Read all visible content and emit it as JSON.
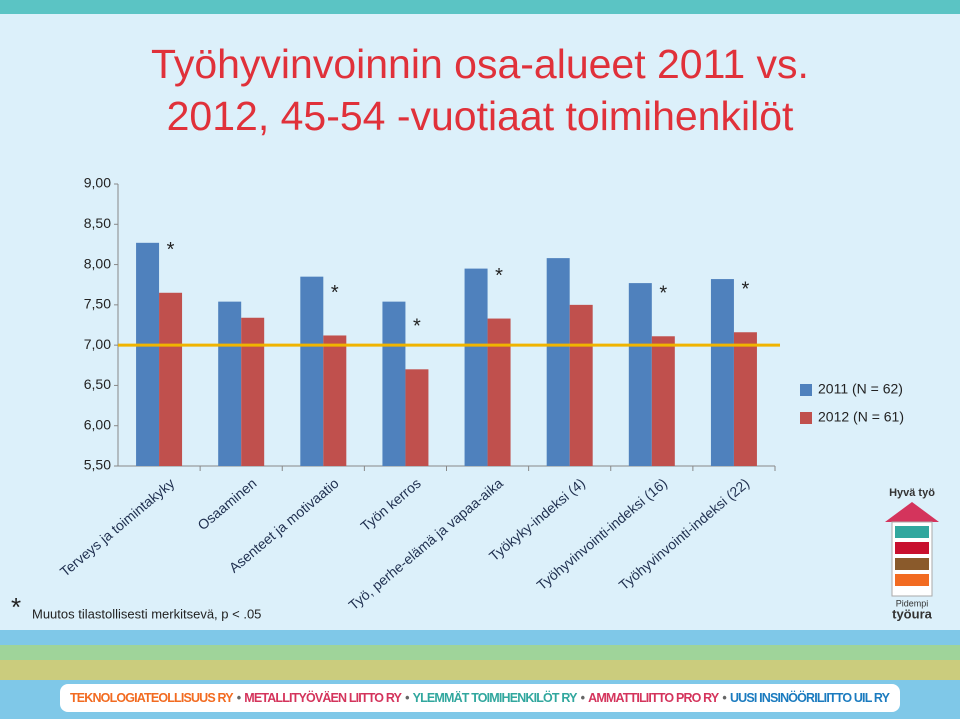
{
  "chart_data": {
    "type": "bar",
    "title": "Työhyvinvoinnin osa-alueet 2011 vs. 2012, 45-54 -vuotiaat toimihenkilöt",
    "categories": [
      "Terveys ja toimintakyky",
      "Osaaminen",
      "Asenteet ja motivaatio",
      "Työn kerros",
      "Työ, perhe-elämä ja vapaa-aika",
      "Työkyky-indeksi (4)",
      "Työhyvinvointi-indeksi (16)",
      "Työhyvinvointi-indeksi (22)"
    ],
    "series": [
      {
        "name": "2011 (N = 62)",
        "color": "#4f81bd",
        "values": [
          8.27,
          7.54,
          7.85,
          7.54,
          7.95,
          8.08,
          7.77,
          7.82
        ]
      },
      {
        "name": "2012 (N = 61)",
        "color": "#c0504d",
        "values": [
          7.65,
          7.34,
          7.12,
          6.7,
          7.33,
          7.5,
          7.11,
          7.16
        ]
      }
    ],
    "ylim": [
      5.5,
      9.0
    ],
    "yticks": [
      {
        "value": 5.5,
        "label": "5,50"
      },
      {
        "value": 6.0,
        "label": "6,00"
      },
      {
        "value": 6.5,
        "label": "6,50"
      },
      {
        "value": 7.0,
        "label": "7,00"
      },
      {
        "value": 7.5,
        "label": "7,50"
      },
      {
        "value": 8.0,
        "label": "8,00"
      },
      {
        "value": 8.5,
        "label": "8,50"
      },
      {
        "value": 9.0,
        "label": "9,00"
      }
    ],
    "reference_line": {
      "value": 7.0,
      "color": "#f0b400"
    },
    "significance_marker": "*",
    "significant": [
      true,
      false,
      true,
      true,
      true,
      false,
      true,
      true
    ],
    "footnote": "Muutos tilastollisesti merkitsevä, p < .05",
    "legend": "right",
    "grid": false
  },
  "logo": {
    "top": "Hyvä työ",
    "bottom_small": "Pidempi",
    "bottom_large": "työura"
  },
  "footer": [
    "TEKNOLOGIATEOLLISUUS RY",
    "METALLITYÖVÄEN LIITTO RY",
    "YLEMMÄT TOIMIHENKILÖT RY",
    "AMMATTILIITTO PRO RY",
    "UUSI INSINÖÖRILIITTO UIL RY"
  ]
}
